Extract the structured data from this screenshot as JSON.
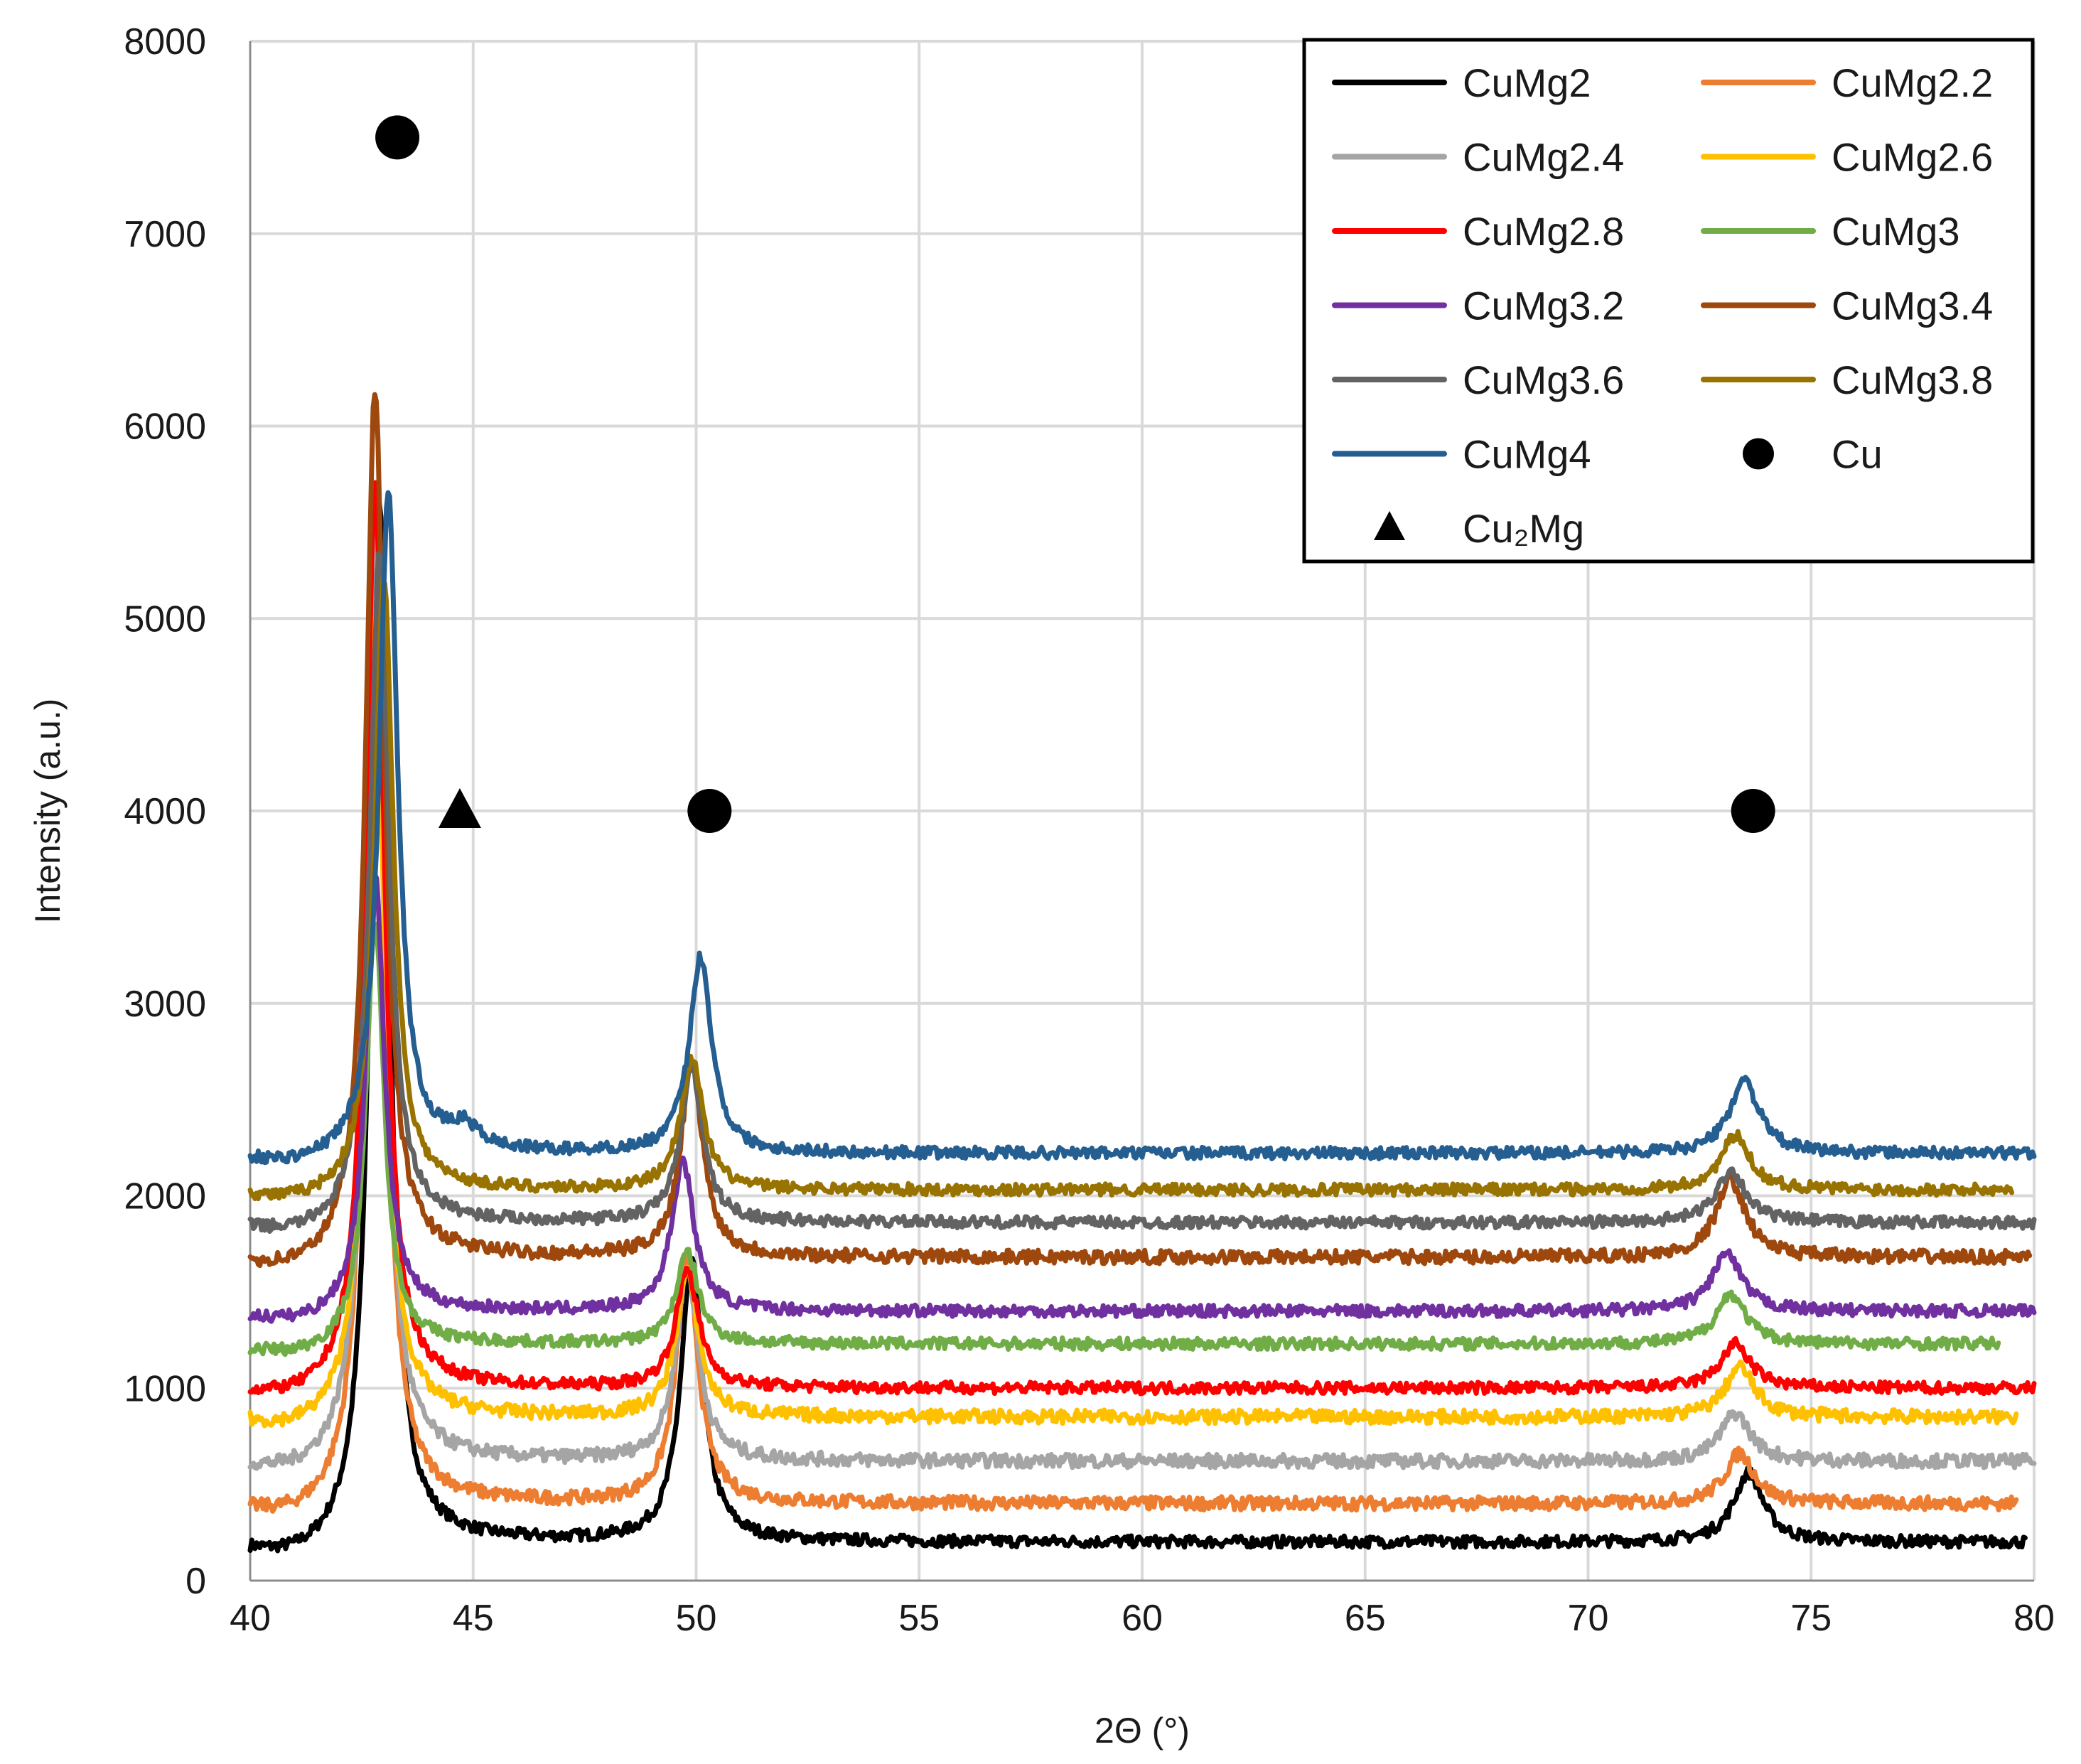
{
  "chart_data": {
    "type": "line",
    "title": "",
    "xlabel": "2Θ (°)",
    "ylabel": "Intensity (a.u.)",
    "xlim": [
      40,
      80
    ],
    "ylim": [
      0,
      8000
    ],
    "xticks": [
      "40",
      "45",
      "50",
      "55",
      "60",
      "65",
      "70",
      "75",
      "80"
    ],
    "yticks": [
      "0",
      "1000",
      "2000",
      "3000",
      "4000",
      "5000",
      "6000",
      "7000",
      "8000"
    ],
    "grid": true,
    "legend_position": "top-right",
    "series": [
      {
        "name": "CuMg2",
        "color": "#000000",
        "x_end": 79.8,
        "baseline": 200,
        "peaks": [
          [
            42.9,
            5400,
            0.25
          ],
          [
            49.9,
            1450,
            0.3
          ],
          [
            73.6,
            360,
            0.4
          ]
        ],
        "hump": 90,
        "noise": 30
      },
      {
        "name": "CuMg2.2",
        "color": "#ed7d31",
        "x_end": 79.6,
        "baseline": 400,
        "peaks": [
          [
            42.8,
            5300,
            0.25
          ],
          [
            49.8,
            1250,
            0.3
          ],
          [
            73.4,
            260,
            0.4
          ]
        ],
        "hump": 80,
        "noise": 35
      },
      {
        "name": "CuMg2.4",
        "color": "#a5a5a5",
        "x_end": 80.0,
        "baseline": 620,
        "peaks": [
          [
            42.8,
            4900,
            0.25
          ],
          [
            49.8,
            1000,
            0.3
          ],
          [
            73.3,
            250,
            0.4
          ]
        ],
        "hump": 70,
        "noise": 35
      },
      {
        "name": "CuMg2.6",
        "color": "#ffc000",
        "x_end": 79.6,
        "baseline": 850,
        "peaks": [
          [
            42.8,
            4200,
            0.25
          ],
          [
            49.8,
            750,
            0.3
          ],
          [
            73.4,
            260,
            0.4
          ]
        ],
        "hump": 70,
        "noise": 35
      },
      {
        "name": "CuMg2.8",
        "color": "#ff0000",
        "x_end": 80.0,
        "baseline": 1000,
        "peaks": [
          [
            42.8,
            4700,
            0.25
          ],
          [
            49.8,
            620,
            0.3
          ],
          [
            73.3,
            230,
            0.4
          ]
        ],
        "hump": 60,
        "noise": 30
      },
      {
        "name": "CuMg3",
        "color": "#70ad47",
        "x_end": 79.2,
        "baseline": 1230,
        "peaks": [
          [
            42.8,
            2200,
            0.25
          ],
          [
            49.8,
            470,
            0.3
          ],
          [
            73.2,
            260,
            0.4
          ]
        ],
        "hump": 60,
        "noise": 30
      },
      {
        "name": "CuMg3.2",
        "color": "#7030a0",
        "x_end": 80.0,
        "baseline": 1400,
        "peaks": [
          [
            42.8,
            2300,
            0.25
          ],
          [
            49.7,
            780,
            0.3
          ],
          [
            73.1,
            300,
            0.4
          ]
        ],
        "hump": 60,
        "noise": 30
      },
      {
        "name": "CuMg3.4",
        "color": "#9e480e",
        "x_end": 79.9,
        "baseline": 1680,
        "peaks": [
          [
            42.8,
            4530,
            0.25
          ],
          [
            49.9,
            1000,
            0.3
          ],
          [
            73.2,
            400,
            0.4
          ]
        ],
        "hump": 70,
        "noise": 35
      },
      {
        "name": "CuMg3.6",
        "color": "#636363",
        "x_end": 80.0,
        "baseline": 1860,
        "peaks": [
          [
            42.9,
            3500,
            0.25
          ],
          [
            49.9,
            800,
            0.3
          ],
          [
            73.2,
            270,
            0.4
          ]
        ],
        "hump": 60,
        "noise": 30
      },
      {
        "name": "CuMg3.8",
        "color": "#997300",
        "x_end": 79.5,
        "baseline": 2030,
        "peaks": [
          [
            43.0,
            3200,
            0.25
          ],
          [
            49.9,
            680,
            0.3
          ],
          [
            73.3,
            280,
            0.4
          ]
        ],
        "hump": 60,
        "noise": 30
      },
      {
        "name": "CuMg4",
        "color": "#255e91",
        "x_end": 80.0,
        "baseline": 2220,
        "peaks": [
          [
            43.1,
            3450,
            0.25
          ],
          [
            50.1,
            1020,
            0.3
          ],
          [
            73.5,
            380,
            0.4
          ],
          [
            44.8,
            110,
            0.4
          ]
        ],
        "hump": 60,
        "noise": 30
      }
    ],
    "markers": [
      {
        "name": "Cu",
        "shape": "circle",
        "points": [
          [
            43.3,
            7500
          ],
          [
            50.3,
            4000
          ],
          [
            73.7,
            4000
          ]
        ]
      },
      {
        "name": "Cu₂Mg",
        "shape": "triangle",
        "points": [
          [
            44.7,
            4000
          ]
        ]
      }
    ]
  }
}
